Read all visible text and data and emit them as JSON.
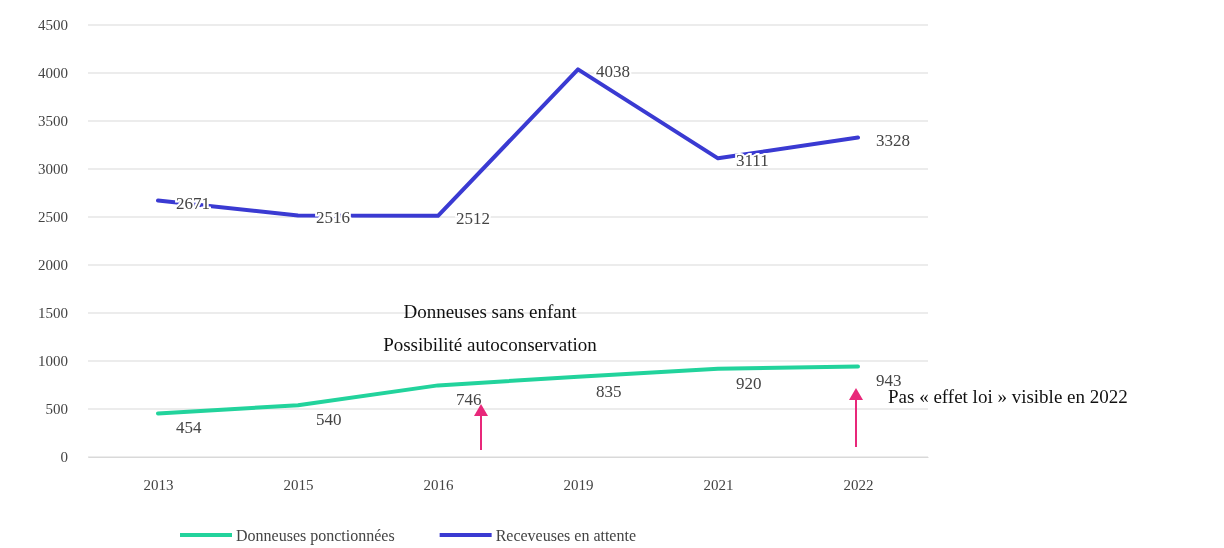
{
  "chart_data": {
    "type": "line",
    "categories": [
      "2013",
      "2015",
      "2016",
      "2019",
      "2021",
      "2022"
    ],
    "series": [
      {
        "name": "Donneuses ponctionnées",
        "color": "#22d39c",
        "values": [
          454,
          540,
          746,
          835,
          920,
          943
        ]
      },
      {
        "name": "Receveuses en attente",
        "color": "#3a3ad2",
        "values": [
          2671,
          2516,
          2512,
          4038,
          3111,
          3328
        ]
      }
    ],
    "ylim": [
      0,
      4500
    ],
    "yticks": [
      0,
      500,
      1000,
      1500,
      2000,
      2500,
      3000,
      3500,
      4000,
      4500
    ],
    "grid": "y",
    "legend": "bottom",
    "data_labels": true,
    "marker": "none",
    "line_style": "solid",
    "annotations": [
      "Donneuses sans enfant",
      "Possibilité autoconservation",
      "Pas « effet loi » visible en 2022"
    ]
  }
}
